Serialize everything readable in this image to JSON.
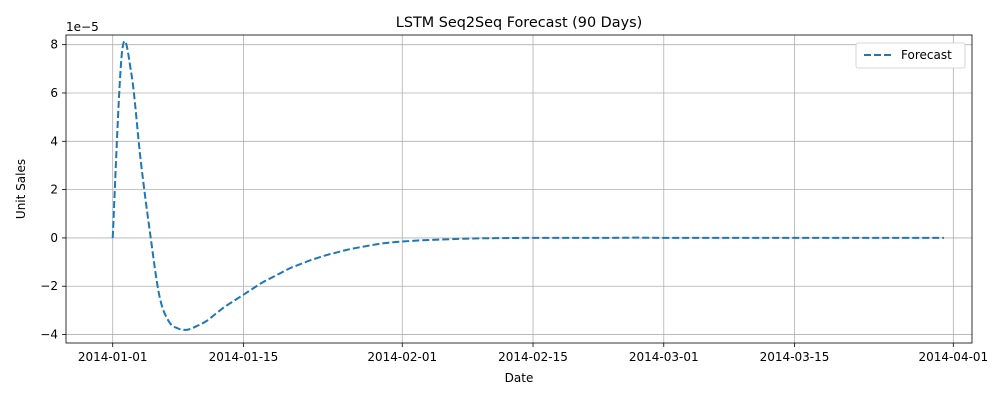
{
  "chart_data": {
    "type": "line",
    "title": "LSTM Seq2Seq Forecast (90 Days)",
    "xlabel": "Date",
    "ylabel": "Unit Sales",
    "y_offset_text": "1e−5",
    "y_scale": 1e-05,
    "grid": true,
    "legend_position": "upper right",
    "xlim": [
      "2013-12-27",
      "2014-04-03"
    ],
    "ylim": [
      -4.35e-05,
      8.4e-05
    ],
    "x_ticks": [
      "2014-01-01",
      "2014-01-15",
      "2014-02-01",
      "2014-02-15",
      "2014-03-01",
      "2014-03-15",
      "2014-04-01"
    ],
    "y_ticks": [
      -4e-05,
      -2e-05,
      0,
      2e-05,
      4e-05,
      6e-05,
      8e-05
    ],
    "y_tick_labels": [
      "−4",
      "−2",
      "0",
      "2",
      "4",
      "6",
      "8"
    ],
    "series": [
      {
        "name": "Forecast",
        "color": "#1f77b4",
        "line_style": "dashed",
        "x": [
          "2014-01-01",
          "2014-01-02",
          "2014-01-03",
          "2014-01-04",
          "2014-01-05",
          "2014-01-06",
          "2014-01-07",
          "2014-01-08",
          "2014-01-09",
          "2014-01-10",
          "2014-01-11",
          "2014-01-12",
          "2014-01-13",
          "2014-01-14",
          "2014-01-15",
          "2014-01-16",
          "2014-01-17",
          "2014-01-18",
          "2014-01-19",
          "2014-01-20",
          "2014-01-21",
          "2014-01-22",
          "2014-01-23",
          "2014-01-24",
          "2014-01-25",
          "2014-01-26",
          "2014-01-27",
          "2014-01-28",
          "2014-01-29",
          "2014-01-30",
          "2014-01-31",
          "2014-02-01",
          "2014-02-03",
          "2014-02-05",
          "2014-02-07",
          "2014-02-09",
          "2014-02-11",
          "2014-02-14",
          "2014-02-18",
          "2014-02-22",
          "2014-02-26",
          "2014-03-02",
          "2014-03-06",
          "2014-03-10",
          "2014-03-14",
          "2014-03-18",
          "2014-03-22",
          "2014-03-26",
          "2014-03-30",
          "2014-03-31"
        ],
        "values": [
          0,
          7.7e-05,
          6.8e-05,
          3.2e-05,
          2e-06,
          -2.4e-05,
          -3.45e-05,
          -3.75e-05,
          -3.8e-05,
          -3.65e-05,
          -3.45e-05,
          -3.15e-05,
          -2.85e-05,
          -2.6e-05,
          -2.35e-05,
          -2.1e-05,
          -1.85e-05,
          -1.65e-05,
          -1.45e-05,
          -1.25e-05,
          -1.1e-05,
          -9.5e-06,
          -8.2e-06,
          -7e-06,
          -6e-06,
          -5e-06,
          -4.2e-06,
          -3.5e-06,
          -2.8e-06,
          -2.2e-06,
          -1.8e-06,
          -1.5e-06,
          -1e-06,
          -7e-07,
          -4e-07,
          -2e-07,
          -1e-07,
          0,
          0,
          0,
          1e-07,
          0,
          0,
          0,
          0,
          0,
          0,
          0,
          0,
          0
        ]
      }
    ]
  }
}
